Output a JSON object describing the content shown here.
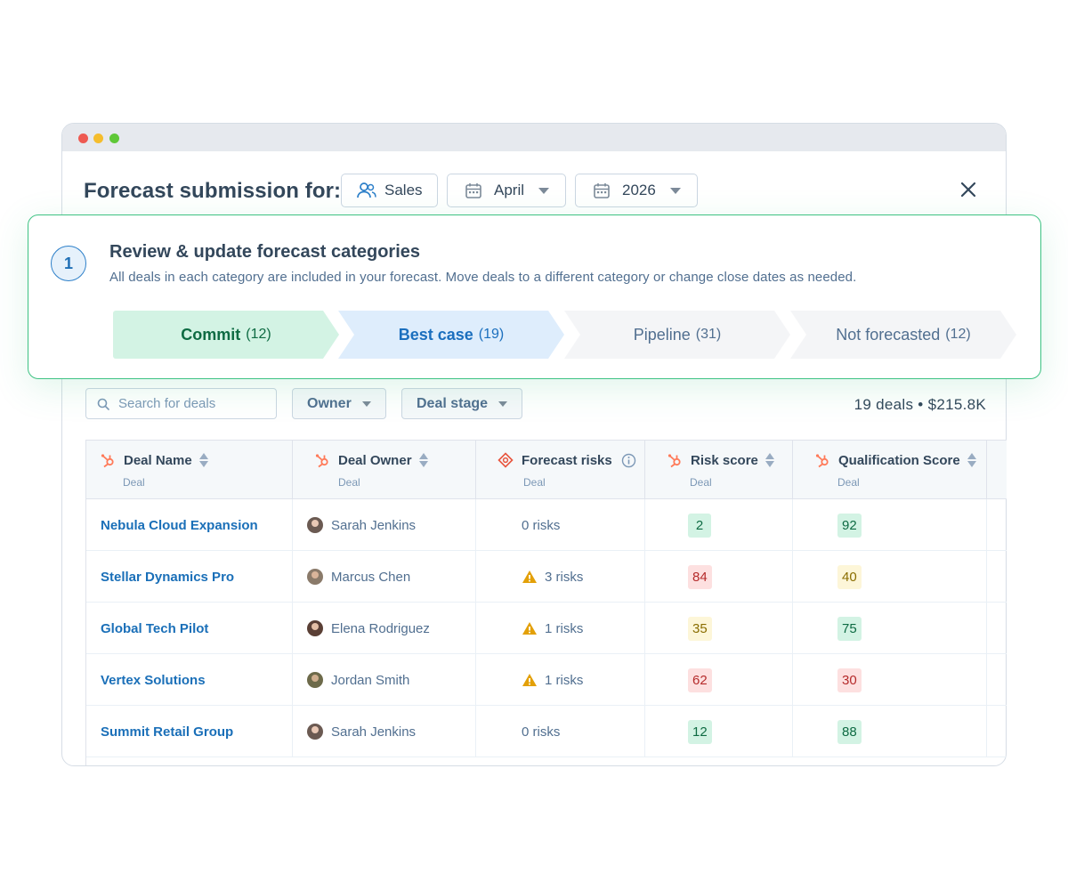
{
  "header": {
    "title": "Forecast submission for:",
    "team": "Sales",
    "month": "April",
    "year": "2026"
  },
  "step": {
    "number": "1",
    "title": "Review & update forecast categories",
    "description": "All deals in each category are included in your forecast. Move deals to a different category or change close dates as needed.",
    "categories": [
      {
        "label": "Commit",
        "count": "(12)"
      },
      {
        "label": "Best case",
        "count": "(19)"
      },
      {
        "label": "Pipeline",
        "count": "(31)"
      },
      {
        "label": "Not forecasted",
        "count": "(12)"
      }
    ]
  },
  "filters": {
    "search_placeholder": "Search for deals",
    "owner": "Owner",
    "deal_stage": "Deal stage",
    "summary": "19 deals • $215.8K"
  },
  "table": {
    "columns": [
      {
        "label": "Deal Name",
        "sub": "Deal"
      },
      {
        "label": "Deal Owner",
        "sub": "Deal"
      },
      {
        "label": "Forecast risks",
        "sub": "Deal"
      },
      {
        "label": "Risk score",
        "sub": "Deal"
      },
      {
        "label": "Qualification Score",
        "sub": "Deal"
      }
    ],
    "rows": [
      {
        "deal": "Nebula Cloud Expansion",
        "owner": "Sarah Jenkins",
        "risks": "0 risks",
        "risk_score": "2",
        "qual_score": "92"
      },
      {
        "deal": "Stellar Dynamics Pro",
        "owner": "Marcus Chen",
        "risks": "3 risks",
        "risk_score": "84",
        "qual_score": "40"
      },
      {
        "deal": "Global Tech Pilot",
        "owner": "Elena Rodriguez",
        "risks": "1 risks",
        "risk_score": "35",
        "qual_score": "75"
      },
      {
        "deal": "Vertex Solutions",
        "owner": "Jordan Smith",
        "risks": "1 risks",
        "risk_score": "62",
        "qual_score": "30"
      },
      {
        "deal": "Summit Retail Group",
        "owner": "Sarah Jenkins",
        "risks": "0 risks",
        "risk_score": "12",
        "qual_score": "88"
      }
    ]
  },
  "colors": {
    "accent_green": "#3ec283",
    "link_blue": "#1a6fb8",
    "hubspot_orange": "#ff7a59"
  }
}
